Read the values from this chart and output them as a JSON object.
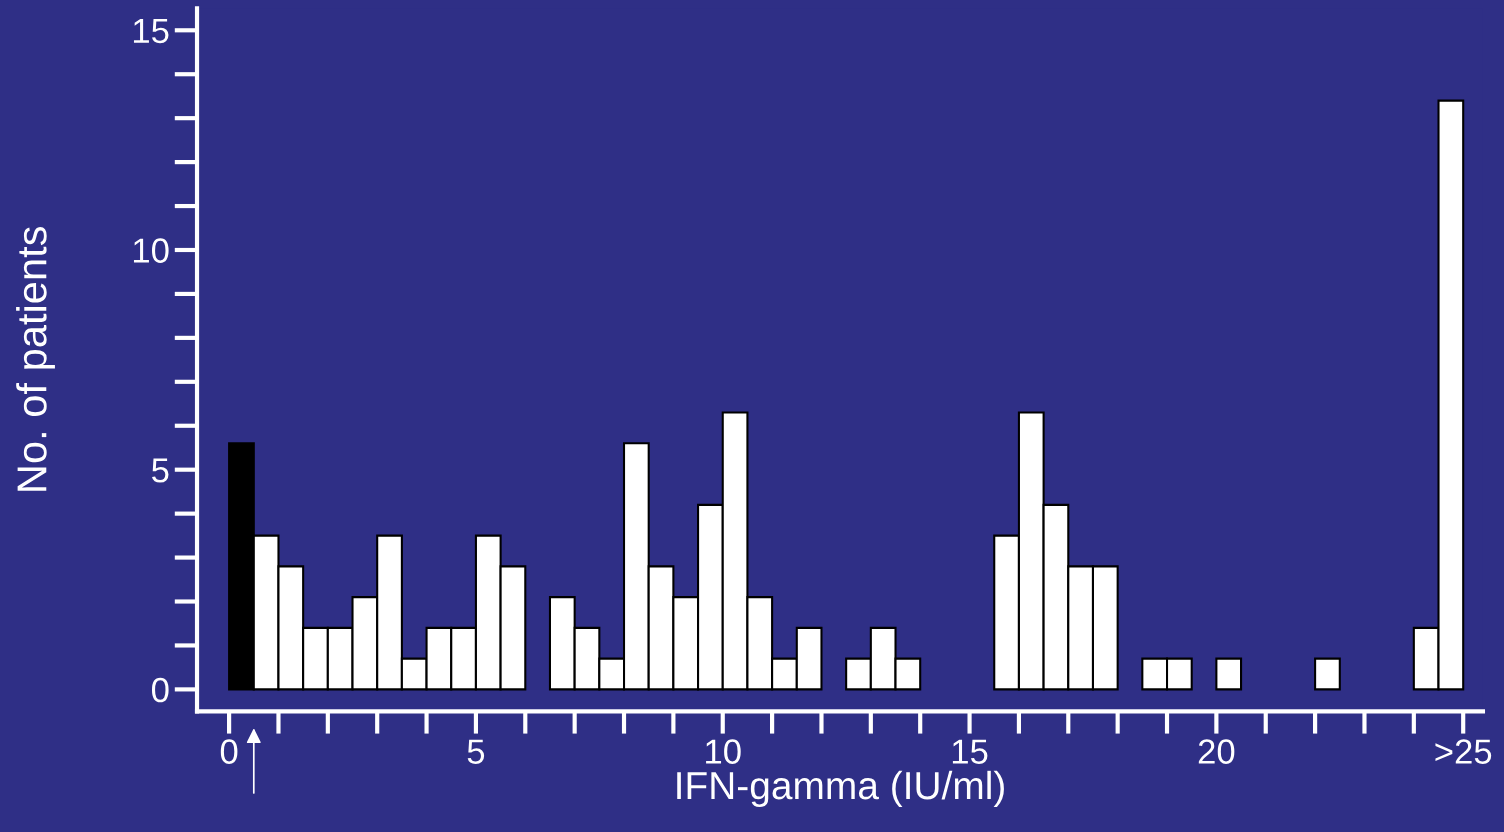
{
  "chart_data": {
    "type": "histogram",
    "xlabel": "IFN-gamma (IU/ml)",
    "ylabel": "No. of patients",
    "bins": [
      0,
      0.5,
      1,
      1.5,
      2,
      2.5,
      3,
      3.5,
      4,
      4.5,
      5,
      5.5,
      6,
      6.5,
      7,
      7.5,
      8,
      8.5,
      9,
      9.5,
      10,
      10.5,
      11,
      11.5,
      12,
      12.5,
      13,
      13.5,
      14,
      14.5,
      15,
      15.5,
      16,
      16.5,
      17,
      17.5,
      18,
      18.5,
      19,
      19.5,
      20,
      20.5,
      21,
      21.5,
      22,
      22.5,
      23,
      23.5,
      24,
      24.5,
      25
    ],
    "values": [
      5.6,
      3.5,
      2.8,
      1.4,
      1.4,
      2.1,
      3.5,
      0.7,
      1.4,
      1.4,
      3.5,
      2.8,
      0,
      2.1,
      1.4,
      0.7,
      5.6,
      2.8,
      2.1,
      4.2,
      6.3,
      2.1,
      0.7,
      1.4,
      0,
      0.7,
      1.4,
      0.7,
      0,
      0,
      0,
      3.5,
      6.3,
      4.2,
      2.8,
      2.8,
      0,
      0.7,
      0.7,
      0,
      0.7,
      0,
      0,
      0,
      0.7,
      0,
      0,
      0,
      1.4,
      13.4
    ],
    "colors": [
      "#000000",
      "#ffffff",
      "#ffffff",
      "#ffffff",
      "#ffffff",
      "#ffffff",
      "#ffffff",
      "#ffffff",
      "#ffffff",
      "#ffffff",
      "#ffffff",
      "#ffffff",
      "#ffffff",
      "#ffffff",
      "#ffffff",
      "#ffffff",
      "#ffffff",
      "#ffffff",
      "#ffffff",
      "#ffffff",
      "#ffffff",
      "#ffffff",
      "#ffffff",
      "#ffffff",
      "#ffffff",
      "#ffffff",
      "#ffffff",
      "#ffffff",
      "#ffffff",
      "#ffffff",
      "#ffffff",
      "#ffffff",
      "#ffffff",
      "#ffffff",
      "#ffffff",
      "#ffffff",
      "#ffffff",
      "#ffffff",
      "#ffffff",
      "#ffffff",
      "#ffffff",
      "#ffffff",
      "#ffffff",
      "#ffffff",
      "#ffffff",
      "#ffffff",
      "#ffffff",
      "#ffffff",
      "#ffffff",
      "#ffffff"
    ],
    "xlim": [
      -0.65,
      25.4
    ],
    "ylim": [
      -0.5,
      15.5
    ],
    "xticks": [
      0,
      5,
      10,
      15,
      20,
      {
        "value": 25,
        "label": ">25"
      }
    ],
    "yticks": [
      0,
      5,
      10,
      15
    ],
    "grid": false
  }
}
